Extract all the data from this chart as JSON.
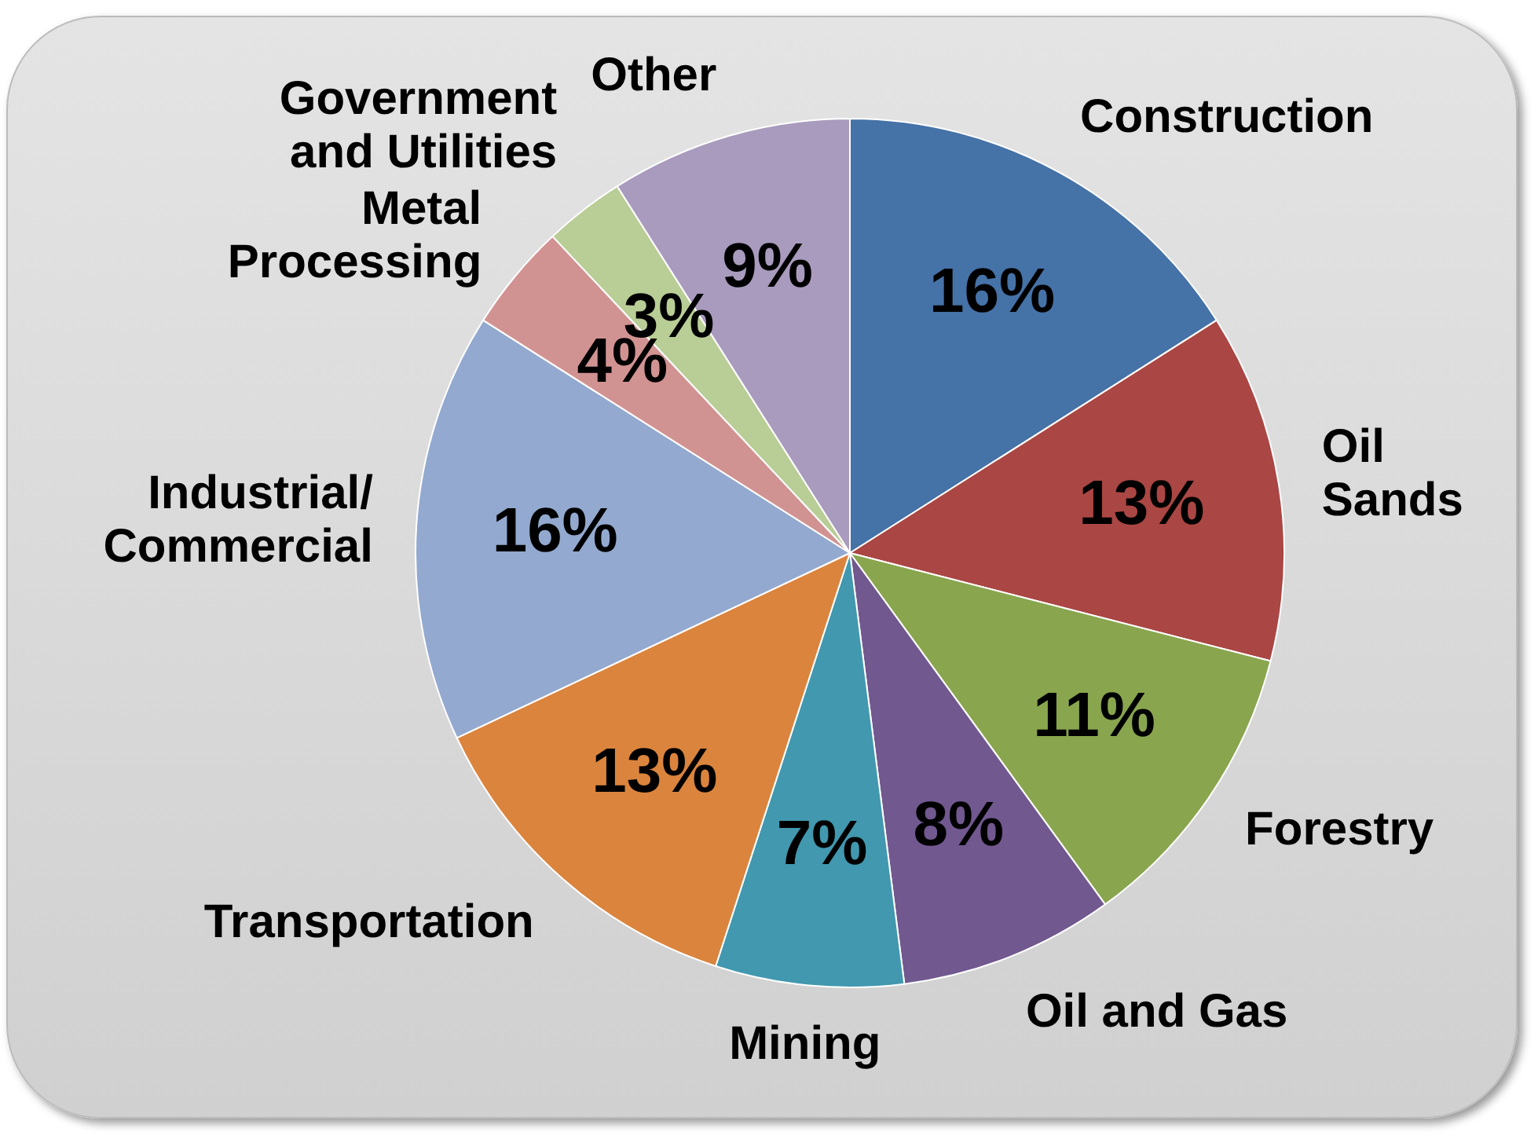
{
  "chart_data": {
    "type": "pie",
    "categories": [
      "Construction",
      "Oil\nSands",
      "Forestry",
      "Oil and Gas",
      "Mining",
      "Transportation",
      "Industrial/\nCommercial",
      "Metal\nProcessing",
      "Government\nand Utilities",
      "Other"
    ],
    "values": [
      16,
      13,
      11,
      8,
      7,
      13,
      16,
      4,
      3,
      9
    ],
    "value_labels": [
      "16%",
      "13%",
      "11%",
      "8%",
      "7%",
      "13%",
      "16%",
      "4%",
      "3%",
      "9%"
    ],
    "colors": [
      "#4572a7",
      "#aa4643",
      "#89a54e",
      "#71588f",
      "#4198af",
      "#db843d",
      "#93a9cf",
      "#d19392",
      "#b9cd96",
      "#a99bbd"
    ],
    "legend": false
  }
}
